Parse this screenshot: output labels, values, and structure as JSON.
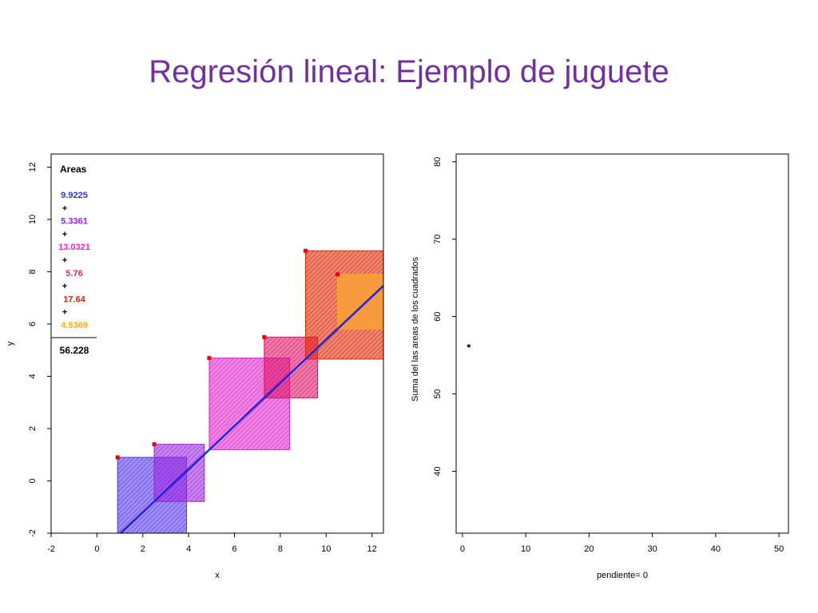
{
  "slide": {
    "title": "Regresión lineal: Ejemplo de juguete"
  },
  "chart_data": [
    {
      "type": "scatter",
      "title": "",
      "xlabel": "x",
      "ylabel": "y",
      "xlim": [
        -2,
        12.5
      ],
      "ylim": [
        -2,
        12.5
      ],
      "xticks": [
        -2,
        0,
        2,
        4,
        6,
        8,
        10,
        12
      ],
      "yticks": [
        -2,
        0,
        2,
        4,
        6,
        8,
        10,
        12
      ],
      "grid": false,
      "points": [
        {
          "x": 0.9,
          "y": 0.9
        },
        {
          "x": 2.5,
          "y": 1.4
        },
        {
          "x": 4.9,
          "y": 4.7
        },
        {
          "x": 7.3,
          "y": 5.5
        },
        {
          "x": 9.1,
          "y": 8.8
        },
        {
          "x": 10.5,
          "y": 7.9
        }
      ],
      "fit_line": {
        "intercept": -2.85,
        "slope": 0.825
      },
      "squares_colors": [
        "#5533ee",
        "#9922dd",
        "#dd22cc",
        "#dd1166",
        "#dd2200",
        "#ffaa22"
      ],
      "legend": {
        "placement": "top-left",
        "title": "Areas",
        "items": [
          {
            "value": "9.9225",
            "color": "#3333cc"
          },
          {
            "value": "5.3361",
            "color": "#9922dd"
          },
          {
            "value": "13.0321",
            "color": "#ee22cc"
          },
          {
            "value": "5.76",
            "color": "#ee2266"
          },
          {
            "value": "17.64",
            "color": "#dd2211"
          },
          {
            "value": "4.5369",
            "color": "#ffaa22"
          }
        ],
        "separator": "+",
        "total": "56.228"
      }
    },
    {
      "type": "scatter",
      "title": "",
      "xlabel": "pendiente= 0",
      "ylabel": "Suma del las areas de los cuadrados",
      "xlim": [
        -1,
        51.5
      ],
      "ylim": [
        32,
        81
      ],
      "xticks": [
        0,
        10,
        20,
        30,
        40,
        50
      ],
      "yticks": [
        40,
        50,
        60,
        70,
        80
      ],
      "grid": false,
      "points": [
        {
          "x": 1,
          "y": 56.2,
          "color": "#0000cc"
        }
      ]
    }
  ]
}
